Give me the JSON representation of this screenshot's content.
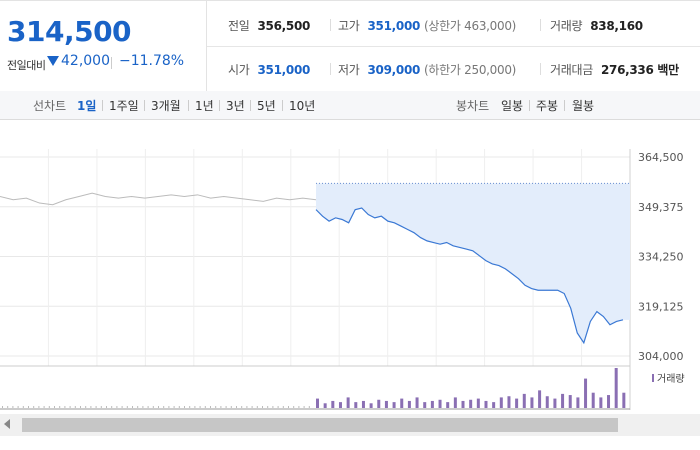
{
  "summary": {
    "price": "314,500",
    "diff_label": "전일대비",
    "diff_value": "42,000",
    "diff_rate": "−11.78%",
    "prev_close_label": "전일",
    "prev_close": "356,500",
    "high_label": "고가",
    "high": "351,000",
    "upper_limit": "(상한가 463,000)",
    "volume_label": "거래량",
    "volume": "838,160",
    "open_label": "시가",
    "open": "351,000",
    "low_label": "저가",
    "low": "309,000",
    "lower_limit": "(하한가 250,000)",
    "amount_label": "거래대금",
    "amount": "276,336 백만"
  },
  "period_bar": {
    "chart_label": "선차트",
    "periods": [
      "1일",
      "1주일",
      "3개월",
      "1년",
      "3년",
      "5년",
      "10년"
    ],
    "active_period": "1일",
    "candle_label": "봉차트",
    "candles": [
      "일봉",
      "주봉",
      "월봉"
    ]
  },
  "colors": {
    "accent": "#1a63c7",
    "line": "#3a78d4",
    "fill": "#e3edfb",
    "prev_day_line": "#bbbbbb",
    "volume_bar": "#8a6fb3"
  },
  "chart_data": {
    "type": "line",
    "y_ticks": [
      "364,500",
      "349,375",
      "334,250",
      "319,125",
      "304,000"
    ],
    "ylim": [
      304000,
      364500
    ],
    "legend": "거래량",
    "legend_position": "top-right",
    "reference_line": 356500,
    "series": [
      {
        "values": [
          352500,
          351500,
          352000,
          350500,
          350000,
          351500,
          352500,
          353500,
          352500,
          352000,
          352500,
          352000,
          352500,
          353000,
          352500,
          353000,
          352000,
          352500,
          352000,
          351500,
          351000,
          352000,
          351500,
          352000,
          351500
        ]
      },
      {
        "values": [
          348500,
          346500,
          345000,
          346000,
          345500,
          344500,
          348500,
          349000,
          347000,
          346000,
          346500,
          345000,
          344500,
          343500,
          342500,
          341500,
          340000,
          339000,
          338500,
          338000,
          338500,
          337500,
          337000,
          336500,
          336000,
          334500,
          333000,
          332000,
          331500,
          330500,
          329000,
          327500,
          325500,
          324500,
          324000,
          324000,
          324000,
          324000,
          323000,
          318500,
          311000,
          308000,
          314500,
          317500,
          316000,
          313500,
          314500,
          315000
        ]
      }
    ],
    "volume": {
      "values": [
        8,
        4,
        6,
        5,
        9,
        5,
        6,
        4,
        7,
        6,
        5,
        8,
        6,
        9,
        5,
        6,
        7,
        5,
        9,
        6,
        7,
        8,
        6,
        5,
        9,
        10,
        8,
        12,
        9,
        15,
        10,
        8,
        12,
        11,
        9,
        25,
        13,
        9,
        11,
        34,
        13
      ]
    }
  }
}
